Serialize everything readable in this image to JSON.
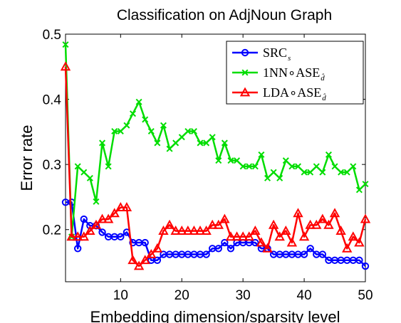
{
  "chart_data": {
    "type": "line",
    "title": "Classification on AdjNoun Graph",
    "xlabel": "Embedding dimension/sparsity level",
    "ylabel": "Error rate",
    "xlim": [
      1,
      50
    ],
    "ylim": [
      0.12,
      0.5
    ],
    "xticks": [
      10,
      20,
      30,
      40,
      50
    ],
    "xtick_labels": [
      "10",
      "20",
      "30",
      "40",
      "50"
    ],
    "yticks": [
      0.2,
      0.3,
      0.4,
      0.5
    ],
    "ytick_labels": [
      "0.2",
      "0.3",
      "0.4",
      "0.5"
    ],
    "grid": false,
    "legend_position": "top-right",
    "x": [
      1,
      2,
      3,
      4,
      5,
      6,
      7,
      8,
      9,
      10,
      11,
      12,
      13,
      14,
      15,
      16,
      17,
      18,
      19,
      20,
      21,
      22,
      23,
      24,
      25,
      26,
      27,
      28,
      29,
      30,
      31,
      32,
      33,
      34,
      35,
      36,
      37,
      38,
      39,
      40,
      41,
      42,
      43,
      44,
      45,
      46,
      47,
      48,
      49,
      50
    ],
    "series": [
      {
        "name": "SRC",
        "name_sub": "s",
        "color": "#0000ff",
        "marker": "circle",
        "values": [
          0.242,
          0.242,
          0.171,
          0.216,
          0.206,
          0.206,
          0.196,
          0.189,
          0.189,
          0.189,
          0.196,
          0.18,
          0.18,
          0.18,
          0.153,
          0.153,
          0.162,
          0.162,
          0.162,
          0.162,
          0.162,
          0.162,
          0.162,
          0.162,
          0.171,
          0.171,
          0.18,
          0.171,
          0.18,
          0.18,
          0.18,
          0.18,
          0.171,
          0.171,
          0.162,
          0.162,
          0.162,
          0.162,
          0.162,
          0.162,
          0.171,
          0.162,
          0.162,
          0.153,
          0.153,
          0.153,
          0.153,
          0.153,
          0.153,
          0.144
        ]
      },
      {
        "name": "1NN∘ASE",
        "name_sub": "d̂",
        "color": "#00dd00",
        "marker": "x",
        "values": [
          0.484,
          0.189,
          0.297,
          0.288,
          0.279,
          0.243,
          0.333,
          0.297,
          0.351,
          0.351,
          0.36,
          0.378,
          0.396,
          0.369,
          0.351,
          0.333,
          0.36,
          0.324,
          0.333,
          0.342,
          0.351,
          0.351,
          0.333,
          0.333,
          0.342,
          0.306,
          0.333,
          0.306,
          0.306,
          0.297,
          0.297,
          0.297,
          0.315,
          0.279,
          0.288,
          0.279,
          0.306,
          0.297,
          0.297,
          0.288,
          0.288,
          0.297,
          0.288,
          0.315,
          0.297,
          0.288,
          0.288,
          0.297,
          0.261,
          0.27
        ]
      },
      {
        "name": "LDA∘ASE",
        "name_sub": "d̂",
        "color": "#ff0000",
        "marker": "triangle",
        "values": [
          0.45,
          0.189,
          0.189,
          0.189,
          0.198,
          0.207,
          0.216,
          0.216,
          0.225,
          0.234,
          0.234,
          0.153,
          0.144,
          0.153,
          0.162,
          0.171,
          0.198,
          0.207,
          0.198,
          0.198,
          0.198,
          0.198,
          0.198,
          0.198,
          0.207,
          0.207,
          0.216,
          0.189,
          0.189,
          0.189,
          0.189,
          0.198,
          0.18,
          0.171,
          0.207,
          0.189,
          0.198,
          0.18,
          0.225,
          0.189,
          0.207,
          0.207,
          0.216,
          0.207,
          0.225,
          0.198,
          0.171,
          0.189,
          0.18,
          0.216
        ]
      }
    ]
  }
}
